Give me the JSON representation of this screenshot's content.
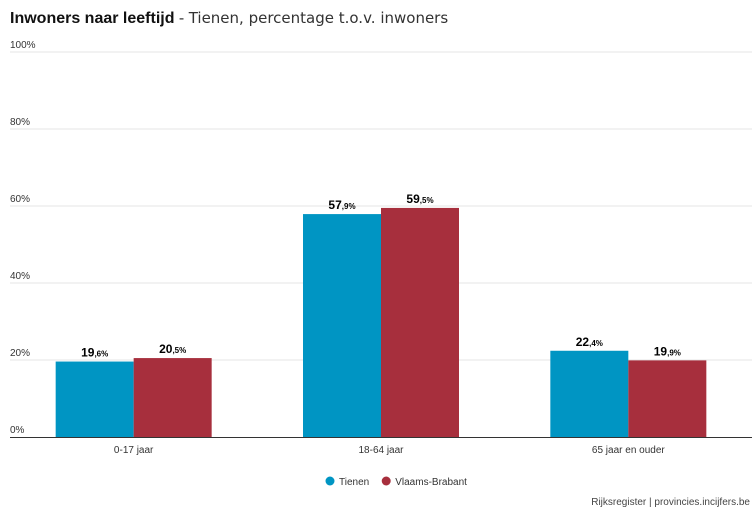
{
  "header": {
    "title_main": "Inwoners naar leeftijd",
    "title_separator": " - ",
    "title_sub": "Tienen, percentage t.o.v. inwoners"
  },
  "credit": "Rijksregister | provincies.incijfers.be",
  "chart_data": {
    "type": "bar",
    "categories": [
      "0-17 jaar",
      "18-64 jaar",
      "65 jaar en ouder"
    ],
    "series": [
      {
        "name": "Tienen",
        "values": [
          19.6,
          57.9,
          22.4
        ],
        "color": "#0095c3",
        "labels": [
          {
            "int": "19",
            "dec": ",6%"
          },
          {
            "int": "57",
            "dec": ",9%"
          },
          {
            "int": "22",
            "dec": ",4%"
          }
        ]
      },
      {
        "name": "Vlaams-Brabant",
        "values": [
          20.5,
          59.5,
          19.9
        ],
        "color": "#a72f3d",
        "labels": [
          {
            "int": "20",
            "dec": ",5%"
          },
          {
            "int": "59",
            "dec": ",5%"
          },
          {
            "int": "19",
            "dec": ",9%"
          }
        ]
      }
    ],
    "ylim": [
      0,
      100
    ],
    "yticks": [
      0,
      20,
      40,
      60,
      80,
      100
    ],
    "ytick_labels": [
      "0%",
      "20%",
      "40%",
      "60%",
      "80%",
      "100%"
    ],
    "grid": true,
    "legend_position": "bottom-center"
  }
}
